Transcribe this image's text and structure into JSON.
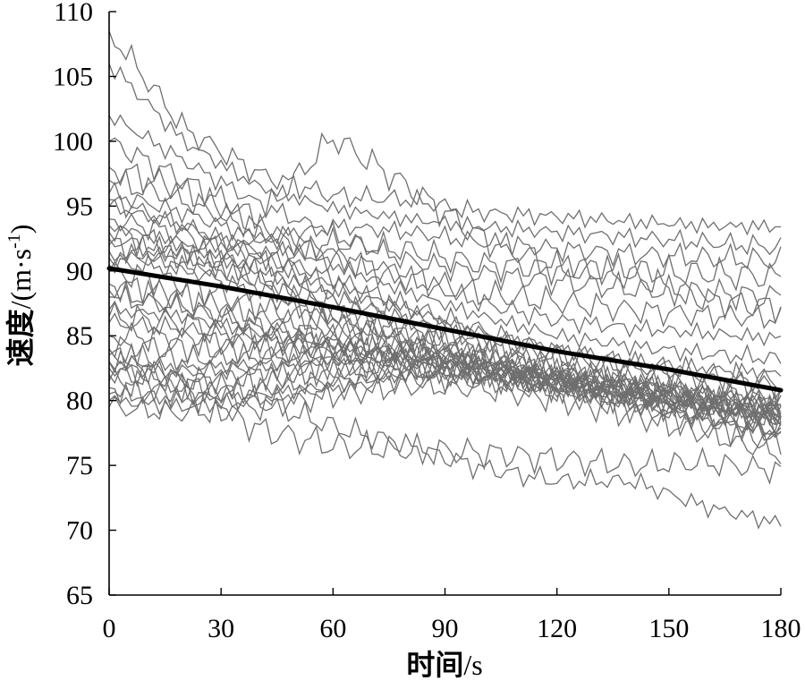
{
  "chart_data": {
    "type": "line",
    "title": "",
    "xlabel": {
      "cjk": "时间",
      "unit": "/s"
    },
    "ylabel": {
      "cjk": "速度",
      "unit_pre": "/(m·s",
      "unit_sup": "-1",
      "unit_post": ")"
    },
    "xlim": [
      0,
      180
    ],
    "ylim": [
      65,
      110
    ],
    "x_ticks": [
      "0",
      "30",
      "60",
      "90",
      "120",
      "150",
      "180"
    ],
    "y_ticks": [
      "65",
      "70",
      "75",
      "80",
      "85",
      "90",
      "95",
      "100",
      "105",
      "110"
    ],
    "grid": false,
    "legend": "none",
    "colors": {
      "trajectories": "#6f6f6f",
      "mean": "#000000"
    },
    "series": [
      {
        "role": "mean",
        "x": [
          0,
          30,
          60,
          90,
          120,
          150,
          180
        ],
        "values": [
          90.2,
          88.8,
          87.2,
          85.5,
          83.8,
          82.4,
          80.8
        ]
      },
      {
        "x": [
          0,
          20,
          40,
          60,
          80,
          100,
          120,
          140,
          160,
          180
        ],
        "values": [
          108.5,
          101.0,
          97.5,
          95.8,
          95.5,
          94.5,
          94.2,
          93.8,
          93.5,
          93.4
        ]
      },
      {
        "x": [
          0,
          20,
          40,
          60,
          80,
          100,
          120,
          140,
          160,
          180
        ],
        "values": [
          106.0,
          100.0,
          96.5,
          94.8,
          94.0,
          93.4,
          93.0,
          92.6,
          92.2,
          91.8
        ]
      },
      {
        "x": [
          0,
          20,
          40,
          60,
          80,
          100,
          120,
          140,
          160,
          180
        ],
        "values": [
          102.0,
          98.5,
          95.2,
          92.8,
          90.8,
          89.8,
          89.2,
          88.6,
          88.3,
          88.0
        ]
      },
      {
        "x": [
          0,
          20,
          40,
          60,
          80,
          100,
          120,
          140,
          160,
          180
        ],
        "values": [
          100.0,
          97.0,
          94.0,
          100.3,
          96.5,
          92.5,
          90.3,
          89.6,
          87.8,
          87.2
        ]
      },
      {
        "x": [
          0,
          20,
          40,
          60,
          80,
          100,
          120,
          140,
          160,
          180
        ],
        "values": [
          98.0,
          96.2,
          93.2,
          91.0,
          89.5,
          88.2,
          87.6,
          87.0,
          86.6,
          86.3
        ]
      },
      {
        "x": [
          0,
          20,
          40,
          60,
          80,
          100,
          120,
          140,
          160,
          180
        ],
        "values": [
          97.0,
          95.5,
          93.2,
          91.2,
          89.5,
          87.5,
          86.2,
          85.6,
          85.2,
          84.8
        ]
      },
      {
        "x": [
          0,
          20,
          40,
          60,
          80,
          100,
          120,
          140,
          160,
          180
        ],
        "values": [
          96.0,
          94.5,
          92.5,
          90.5,
          88.4,
          86.5,
          85.0,
          84.2,
          83.6,
          83.2
        ]
      },
      {
        "x": [
          0,
          20,
          40,
          60,
          80,
          100,
          120,
          140,
          160,
          180
        ],
        "values": [
          95.0,
          93.5,
          91.6,
          89.4,
          87.3,
          85.4,
          83.8,
          82.8,
          82.0,
          81.5
        ]
      },
      {
        "x": [
          0,
          20,
          40,
          60,
          80,
          100,
          120,
          140,
          160,
          180
        ],
        "values": [
          94.0,
          92.8,
          90.8,
          88.7,
          86.6,
          84.6,
          82.8,
          81.8,
          80.8,
          80.2
        ]
      },
      {
        "x": [
          0,
          20,
          40,
          60,
          80,
          100,
          120,
          140,
          160,
          180
        ],
        "values": [
          93.0,
          91.8,
          89.6,
          87.5,
          85.5,
          83.8,
          82.2,
          81.1,
          80.1,
          79.4
        ]
      },
      {
        "x": [
          0,
          20,
          40,
          60,
          80,
          100,
          120,
          140,
          160,
          180
        ],
        "values": [
          92.0,
          91.0,
          88.9,
          86.8,
          85.0,
          83.3,
          81.8,
          80.6,
          79.6,
          78.9
        ]
      },
      {
        "x": [
          0,
          20,
          40,
          60,
          80,
          100,
          120,
          140,
          160,
          180
        ],
        "values": [
          91.5,
          90.3,
          88.2,
          86.2,
          84.5,
          82.9,
          81.4,
          80.2,
          79.2,
          78.4
        ]
      },
      {
        "x": [
          0,
          20,
          40,
          60,
          80,
          100,
          120,
          140,
          160,
          180
        ],
        "values": [
          91.0,
          91.5,
          92.5,
          93.5,
          93.0,
          92.2,
          91.7,
          91.3,
          91.0,
          90.8
        ]
      },
      {
        "x": [
          0,
          20,
          40,
          60,
          80,
          100,
          120,
          140,
          160,
          180
        ],
        "values": [
          90.5,
          90.2,
          91.0,
          92.2,
          91.6,
          90.5,
          90.2,
          90.0,
          89.8,
          89.5
        ]
      },
      {
        "x": [
          0,
          20,
          40,
          60,
          80,
          100,
          120,
          140,
          160,
          180
        ],
        "values": [
          90.0,
          89.0,
          87.2,
          85.6,
          84.4,
          83.2,
          82.0,
          81.0,
          80.2,
          79.6
        ]
      },
      {
        "x": [
          0,
          20,
          40,
          60,
          80,
          100,
          120,
          140,
          160,
          180
        ],
        "values": [
          89.0,
          88.0,
          86.4,
          85.2,
          84.2,
          83.2,
          82.2,
          81.3,
          80.5,
          79.8
        ]
      },
      {
        "x": [
          0,
          20,
          40,
          60,
          80,
          100,
          120,
          140,
          160,
          180
        ],
        "values": [
          88.0,
          87.2,
          85.6,
          84.5,
          83.6,
          82.8,
          81.8,
          81.0,
          80.2,
          79.5
        ]
      },
      {
        "x": [
          0,
          20,
          40,
          60,
          80,
          100,
          120,
          140,
          160,
          180
        ],
        "values": [
          87.0,
          86.5,
          85.2,
          84.2,
          83.5,
          82.6,
          81.8,
          80.8,
          80.0,
          79.2
        ]
      },
      {
        "x": [
          0,
          20,
          40,
          60,
          80,
          100,
          120,
          140,
          160,
          180
        ],
        "values": [
          86.0,
          85.5,
          84.6,
          84.0,
          83.3,
          82.5,
          81.6,
          80.8,
          79.8,
          79.0
        ]
      },
      {
        "x": [
          0,
          20,
          40,
          60,
          80,
          100,
          120,
          140,
          160,
          180
        ],
        "values": [
          85.0,
          84.8,
          84.3,
          83.8,
          83.2,
          82.5,
          81.7,
          80.9,
          80.0,
          79.2
        ]
      },
      {
        "x": [
          0,
          20,
          40,
          60,
          80,
          100,
          120,
          140,
          160,
          180
        ],
        "values": [
          84.0,
          84.2,
          83.8,
          83.5,
          83.0,
          82.3,
          81.6,
          80.8,
          79.8,
          78.8
        ]
      },
      {
        "x": [
          0,
          20,
          40,
          60,
          80,
          100,
          120,
          140,
          160,
          180
        ],
        "values": [
          83.5,
          83.2,
          83.4,
          83.8,
          83.4,
          82.6,
          81.6,
          80.6,
          79.6,
          78.4
        ]
      },
      {
        "x": [
          0,
          20,
          40,
          60,
          80,
          100,
          120,
          140,
          160,
          180
        ],
        "values": [
          83.0,
          82.6,
          82.8,
          83.2,
          83.0,
          82.2,
          81.2,
          80.2,
          79.2,
          78.0
        ]
      },
      {
        "x": [
          0,
          20,
          40,
          60,
          80,
          100,
          120,
          140,
          160,
          180
        ],
        "values": [
          82.5,
          82.2,
          82.4,
          82.6,
          82.6,
          82.0,
          81.0,
          80.0,
          79.0,
          77.8
        ]
      },
      {
        "x": [
          0,
          20,
          40,
          60,
          80,
          100,
          120,
          140,
          160,
          180
        ],
        "values": [
          82.0,
          81.5,
          82.0,
          82.4,
          82.4,
          82.0,
          81.2,
          80.4,
          79.5,
          78.6
        ]
      },
      {
        "x": [
          0,
          20,
          40,
          60,
          80,
          100,
          120,
          140,
          160,
          180
        ],
        "values": [
          81.5,
          81.0,
          81.6,
          82.4,
          82.6,
          82.3,
          81.6,
          80.6,
          79.4,
          78.2
        ]
      },
      {
        "x": [
          0,
          20,
          40,
          60,
          80,
          100,
          120,
          140,
          160,
          180
        ],
        "values": [
          81.0,
          80.5,
          80.8,
          81.6,
          82.4,
          82.0,
          81.0,
          79.8,
          78.6,
          77.4
        ]
      },
      {
        "x": [
          0,
          20,
          40,
          60,
          80,
          100,
          120,
          140,
          160,
          180
        ],
        "values": [
          80.5,
          80.2,
          80.5,
          81.2,
          82.0,
          81.8,
          80.8,
          79.6,
          78.4,
          77.2
        ]
      },
      {
        "x": [
          0,
          20,
          40,
          60,
          80,
          100,
          120,
          140,
          160,
          180
        ],
        "values": [
          80.0,
          79.5,
          80.0,
          80.8,
          81.6,
          81.4,
          80.6,
          79.4,
          78.0,
          76.6
        ]
      },
      {
        "x": [
          0,
          20,
          40,
          60,
          80,
          100,
          120,
          140,
          160,
          180
        ],
        "values": [
          79.5,
          79.0,
          79.5,
          80.5,
          81.2,
          81.0,
          80.2,
          79.0,
          77.5,
          76.0
        ]
      },
      {
        "x": [
          0,
          20,
          40,
          60,
          80,
          100,
          120,
          140,
          160,
          180
        ],
        "values": [
          84.0,
          81.0,
          77.8,
          76.5,
          76.2,
          76.0,
          75.5,
          75.0,
          75.2,
          74.6
        ]
      },
      {
        "x": [
          0,
          20,
          40,
          60,
          80,
          100,
          120,
          140,
          160,
          180
        ],
        "values": [
          83.0,
          81.5,
          80.0,
          78.0,
          76.5,
          74.8,
          73.8,
          73.8,
          71.8,
          70.5
        ]
      },
      {
        "x": [
          0,
          20,
          40,
          60,
          80,
          100,
          120,
          140,
          160,
          180
        ],
        "values": [
          95.5,
          93.5,
          91.0,
          88.8,
          87.0,
          85.2,
          84.0,
          83.0,
          82.4,
          82.0
        ]
      },
      {
        "x": [
          0,
          20,
          40,
          60,
          80,
          100,
          120,
          140,
          160,
          180
        ],
        "values": [
          93.5,
          92.0,
          90.0,
          88.0,
          86.2,
          84.6,
          83.2,
          82.3,
          81.6,
          81.0
        ]
      },
      {
        "x": [
          0,
          20,
          40,
          60,
          80,
          100,
          120,
          140,
          160,
          180
        ],
        "values": [
          92.5,
          91.2,
          89.2,
          87.0,
          85.0,
          83.4,
          82.0,
          81.0,
          80.2,
          79.6
        ]
      },
      {
        "x": [
          0,
          20,
          40,
          60,
          80,
          100,
          120,
          140,
          160,
          180
        ],
        "values": [
          88.5,
          87.5,
          86.0,
          84.8,
          83.8,
          82.8,
          81.8,
          80.9,
          80.0,
          79.2
        ]
      },
      {
        "x": [
          0,
          20,
          40,
          60,
          80,
          100,
          120,
          140,
          160,
          180
        ],
        "values": [
          86.5,
          86.0,
          85.0,
          84.2,
          83.6,
          82.8,
          81.8,
          80.8,
          79.8,
          78.8
        ]
      }
    ]
  }
}
